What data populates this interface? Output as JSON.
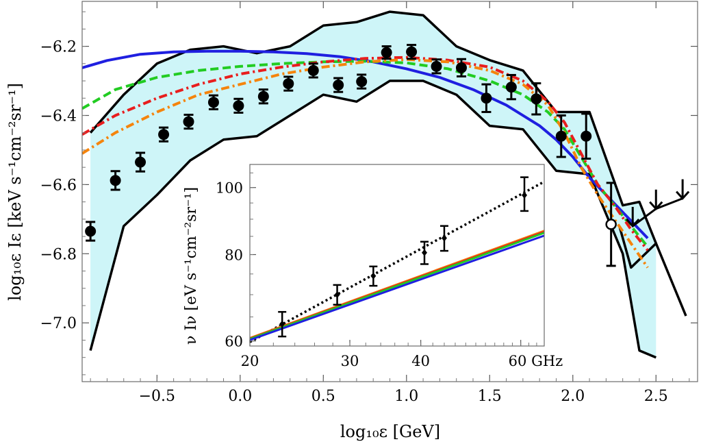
{
  "chart_data": [
    {
      "type": "line",
      "title": "",
      "xlabel": "log₁₀ε [GeV]",
      "ylabel": "log₁₀ε Iε [keV s⁻¹cm⁻²sr⁻¹]",
      "xlim": [
        -0.95,
        2.75
      ],
      "ylim": [
        -7.17,
        -6.07
      ],
      "x_ticks": [
        -0.5,
        0.0,
        0.5,
        1.0,
        1.5,
        2.0,
        2.5
      ],
      "x_tick_labels": [
        "−0.5",
        "0.0",
        "0.5",
        "1.0",
        "1.5",
        "2.0",
        "2.5"
      ],
      "y_ticks": [
        -7.0,
        -6.8,
        -6.6,
        -6.4,
        -6.2
      ],
      "y_tick_labels": [
        "−7.0",
        "−6.8",
        "−6.6",
        "−6.4",
        "−6.2"
      ],
      "grid": false,
      "band": {
        "color": "#cef5f8",
        "upper": {
          "x": [
            -0.9,
            -0.7,
            -0.5,
            -0.3,
            -0.1,
            0.1,
            0.3,
            0.5,
            0.7,
            0.9,
            1.1,
            1.3,
            1.5,
            1.7,
            1.9,
            2.1,
            2.3,
            2.4,
            2.5
          ],
          "y": [
            -6.45,
            -6.34,
            -6.25,
            -6.21,
            -6.2,
            -6.22,
            -6.2,
            -6.14,
            -6.13,
            -6.1,
            -6.11,
            -6.2,
            -6.24,
            -6.27,
            -6.39,
            -6.39,
            -6.66,
            -6.65,
            -6.77
          ]
        },
        "lower": {
          "x": [
            -0.9,
            -0.7,
            -0.5,
            -0.3,
            -0.1,
            0.1,
            0.3,
            0.5,
            0.7,
            0.9,
            1.1,
            1.3,
            1.5,
            1.7,
            1.9,
            2.1,
            2.3,
            2.4,
            2.5
          ],
          "y": [
            -7.08,
            -6.72,
            -6.63,
            -6.53,
            -6.47,
            -6.46,
            -6.4,
            -6.34,
            -6.36,
            -6.3,
            -6.3,
            -6.34,
            -6.43,
            -6.44,
            -6.56,
            -6.57,
            -6.8,
            -7.08,
            -7.1
          ]
        }
      },
      "extra_black_line": {
        "x": [
          2.28,
          2.35,
          2.5,
          2.68
        ],
        "y": [
          -6.72,
          -6.84,
          -6.77,
          -6.98
        ]
      },
      "series": [
        {
          "color": "#1f1fe0",
          "style": "solid",
          "x": [
            -0.95,
            -0.8,
            -0.6,
            -0.4,
            -0.2,
            0.0,
            0.2,
            0.4,
            0.6,
            0.8,
            1.0,
            1.2,
            1.4,
            1.6,
            1.8,
            1.9,
            2.0,
            2.1,
            2.2,
            2.3,
            2.4,
            2.45
          ],
          "y": [
            -6.262,
            -6.241,
            -6.223,
            -6.216,
            -6.214,
            -6.214,
            -6.216,
            -6.221,
            -6.23,
            -6.245,
            -6.265,
            -6.29,
            -6.325,
            -6.37,
            -6.43,
            -6.47,
            -6.52,
            -6.58,
            -6.63,
            -6.68,
            -6.73,
            -6.755
          ]
        },
        {
          "color": "#22cc22",
          "style": "dashed",
          "x": [
            -0.95,
            -0.75,
            -0.5,
            -0.25,
            0.0,
            0.25,
            0.5,
            0.75,
            1.0,
            1.25,
            1.5,
            1.7,
            1.85,
            1.95,
            2.05,
            2.15,
            2.25,
            2.35,
            2.45
          ],
          "y": [
            -6.38,
            -6.325,
            -6.29,
            -6.27,
            -6.258,
            -6.25,
            -6.245,
            -6.243,
            -6.248,
            -6.265,
            -6.3,
            -6.34,
            -6.39,
            -6.44,
            -6.52,
            -6.6,
            -6.66,
            -6.72,
            -6.78
          ]
        },
        {
          "color": "#e81e1e",
          "style": "dashdot",
          "x": [
            -0.95,
            -0.75,
            -0.5,
            -0.25,
            0.0,
            0.25,
            0.5,
            0.75,
            1.0,
            1.25,
            1.5,
            1.7,
            1.85,
            1.95,
            2.05,
            2.15,
            2.25,
            2.35,
            2.45
          ],
          "y": [
            -6.455,
            -6.4,
            -6.35,
            -6.31,
            -6.28,
            -6.26,
            -6.245,
            -6.235,
            -6.232,
            -6.24,
            -6.26,
            -6.3,
            -6.36,
            -6.42,
            -6.51,
            -6.6,
            -6.66,
            -6.73,
            -6.79
          ]
        },
        {
          "color": "#f5840c",
          "style": "dashdot",
          "x": [
            -0.95,
            -0.75,
            -0.5,
            -0.25,
            0.0,
            0.25,
            0.5,
            0.75,
            1.0,
            1.25,
            1.5,
            1.7,
            1.85,
            1.95,
            2.05,
            2.15,
            2.25,
            2.35,
            2.45
          ],
          "y": [
            -6.51,
            -6.45,
            -6.39,
            -6.34,
            -6.31,
            -6.28,
            -6.26,
            -6.245,
            -6.238,
            -6.245,
            -6.27,
            -6.31,
            -6.37,
            -6.45,
            -6.55,
            -6.63,
            -6.7,
            -6.77,
            -6.84
          ]
        }
      ],
      "data_points": {
        "x": [
          -0.9,
          -0.75,
          -0.6,
          -0.46,
          -0.31,
          -0.16,
          -0.01,
          0.14,
          0.29,
          0.44,
          0.59,
          0.73,
          0.88,
          1.03,
          1.18,
          1.33,
          1.48,
          1.63,
          1.78,
          1.93,
          2.08,
          2.23
        ],
        "y": [
          -6.735,
          -6.588,
          -6.535,
          -6.455,
          -6.418,
          -6.362,
          -6.372,
          -6.345,
          -6.308,
          -6.27,
          -6.312,
          -6.302,
          -6.218,
          -6.216,
          -6.258,
          -6.262,
          -6.35,
          -6.318,
          -6.352,
          -6.46,
          -6.46,
          -6.715
        ],
        "err": [
          0.027,
          0.027,
          0.027,
          0.02,
          0.02,
          0.02,
          0.02,
          0.02,
          0.02,
          0.02,
          0.02,
          0.02,
          0.018,
          0.02,
          0.02,
          0.025,
          0.04,
          0.035,
          0.045,
          0.06,
          0.065,
          0.12
        ],
        "marker": "filled-circle"
      },
      "upper_limits": {
        "x": [
          2.36,
          2.5,
          2.66
        ],
        "y": [
          -6.72,
          -6.67,
          -6.64
        ]
      }
    },
    {
      "type": "line",
      "title": "",
      "xlabel": "GHz",
      "ylabel": "ν Iν [eV s⁻¹cm⁻²sr⁻¹]",
      "x_scale": "log",
      "y_scale": "log",
      "xlim": [
        20,
        66
      ],
      "ylim": [
        59,
        108
      ],
      "x_tick_labels": [
        "20",
        "30",
        "40",
        "60 GHz"
      ],
      "x_ticks": [
        20,
        30,
        40,
        60
      ],
      "y_tick_labels": [
        "60",
        "80",
        "100"
      ],
      "y_ticks": [
        60,
        80,
        100
      ],
      "grid": false,
      "series": [
        {
          "color": "#000000",
          "style": "dotted",
          "x": [
            20,
            66
          ],
          "y": [
            59.8,
            102
          ]
        },
        {
          "color": "#f5840c",
          "style": "solid",
          "x": [
            20,
            66
          ],
          "y": [
            60.6,
            86.6
          ]
        },
        {
          "color": "#e81e1e",
          "style": "solid",
          "x": [
            20,
            66
          ],
          "y": [
            60.5,
            86.3
          ]
        },
        {
          "color": "#22cc22",
          "style": "solid",
          "x": [
            20,
            66
          ],
          "y": [
            60.4,
            86.0
          ]
        },
        {
          "color": "#1f1fe0",
          "style": "solid",
          "x": [
            20,
            66
          ],
          "y": [
            60.2,
            85.2
          ]
        }
      ],
      "data_points": {
        "x": [
          22.8,
          28.5,
          33.0,
          40.6,
          44.0,
          60.9
        ],
        "y": [
          63.5,
          70.0,
          74.5,
          80.5,
          84.5,
          97.5
        ],
        "err_low": [
          2.6,
          2.3,
          2.4,
          3.0,
          3.5,
          5.0
        ],
        "err_high": [
          2.6,
          2.3,
          2.4,
          3.0,
          3.5,
          6.0
        ],
        "marker": "small-filled-diamond"
      }
    }
  ]
}
